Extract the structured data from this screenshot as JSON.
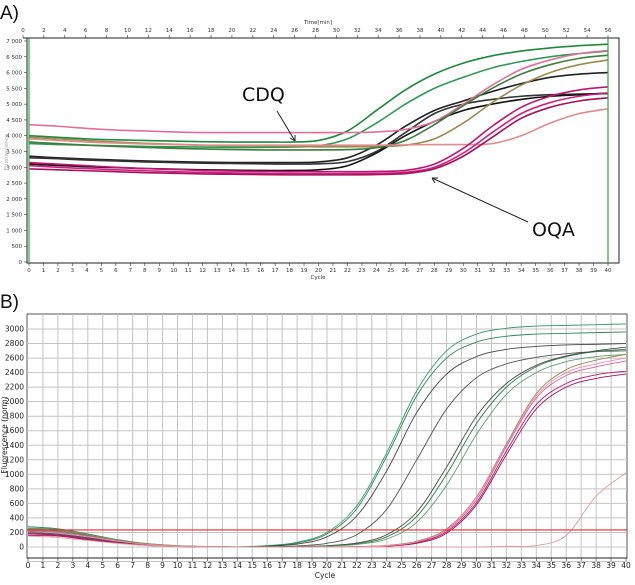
{
  "chart_data": [
    {
      "panel_label": "A)",
      "type": "line",
      "xlabel": "Cycle",
      "x2label": "Time[min]",
      "ylabel": "Fluorescence",
      "xlim": [
        0,
        40
      ],
      "x2lim": [
        0,
        56
      ],
      "ylim": [
        0,
        7000
      ],
      "xticks": [
        0,
        1,
        2,
        3,
        4,
        5,
        6,
        7,
        8,
        9,
        10,
        11,
        12,
        13,
        14,
        15,
        16,
        17,
        18,
        19,
        20,
        21,
        22,
        23,
        24,
        25,
        26,
        27,
        28,
        29,
        30,
        31,
        32,
        33,
        34,
        35,
        36,
        37,
        38,
        39,
        40
      ],
      "x2ticks": [
        0,
        2,
        4,
        6,
        8,
        10,
        12,
        14,
        16,
        18,
        20,
        22,
        24,
        26,
        28,
        30,
        32,
        34,
        36,
        38,
        40,
        42,
        44,
        46,
        48,
        50,
        52,
        54,
        56
      ],
      "yticks": [
        0,
        500,
        1000,
        1500,
        2000,
        2500,
        3000,
        3500,
        4000,
        4500,
        5000,
        5500,
        6000,
        6500,
        7000
      ],
      "ytick_labels": [
        "0",
        "500",
        "1 000",
        "1 500",
        "2 000",
        "2 500",
        "3 000",
        "3 500",
        "4 000",
        "4 500",
        "5 000",
        "5 500",
        "6 000",
        "6 500",
        "7 000"
      ],
      "grid": false,
      "marker_lines_color": "#2eaa4a",
      "annotations": [
        {
          "text": "CDQ",
          "points_to_cycle": 19,
          "points_to_value": 3850
        },
        {
          "text": "OQA",
          "points_to_cycle": 28,
          "points_to_value": 2850
        }
      ],
      "x": [
        0,
        2,
        4,
        6,
        8,
        10,
        12,
        14,
        16,
        18,
        20,
        22,
        24,
        26,
        28,
        30,
        32,
        34,
        36,
        38,
        40
      ],
      "series": [
        {
          "color": "#1f8a3c",
          "values": [
            4000,
            3950,
            3900,
            3870,
            3850,
            3830,
            3810,
            3800,
            3800,
            3800,
            3850,
            4150,
            4800,
            5450,
            5950,
            6300,
            6530,
            6680,
            6780,
            6850,
            6900
          ]
        },
        {
          "color": "#2f9a55",
          "values": [
            3750,
            3720,
            3700,
            3680,
            3660,
            3650,
            3640,
            3630,
            3630,
            3640,
            3680,
            3900,
            4400,
            5000,
            5500,
            5850,
            6150,
            6350,
            6500,
            6600,
            6680
          ]
        },
        {
          "color": "#222222",
          "values": [
            3350,
            3300,
            3260,
            3230,
            3200,
            3180,
            3160,
            3150,
            3150,
            3150,
            3170,
            3300,
            3700,
            4300,
            4800,
            5100,
            5400,
            5650,
            5850,
            5950,
            6000
          ]
        },
        {
          "color": "#333333",
          "values": [
            3300,
            3270,
            3230,
            3200,
            3170,
            3150,
            3130,
            3120,
            3110,
            3100,
            3110,
            3180,
            3500,
            4100,
            4700,
            5000,
            5150,
            5250,
            5300,
            5320,
            5330
          ]
        },
        {
          "color": "#111111",
          "values": [
            3100,
            3060,
            3020,
            2990,
            2960,
            2940,
            2920,
            2910,
            2900,
            2900,
            2920,
            3050,
            3450,
            4000,
            4450,
            4800,
            5000,
            5150,
            5250,
            5300,
            5350
          ]
        },
        {
          "color": "#e0709a",
          "values": [
            4350,
            4300,
            4230,
            4180,
            4150,
            4120,
            4100,
            4100,
            4100,
            4100,
            4100,
            4100,
            4120,
            4200,
            4450,
            5000,
            5600,
            6100,
            6400,
            6600,
            6700
          ]
        },
        {
          "color": "#9a8a50",
          "values": [
            3950,
            3900,
            3850,
            3800,
            3760,
            3730,
            3700,
            3680,
            3670,
            3660,
            3650,
            3650,
            3660,
            3700,
            3900,
            4400,
            5050,
            5600,
            6000,
            6250,
            6400
          ]
        },
        {
          "color": "#3d7d3d",
          "values": [
            3800,
            3750,
            3700,
            3660,
            3630,
            3600,
            3580,
            3560,
            3550,
            3550,
            3550,
            3560,
            3620,
            3850,
            4350,
            4950,
            5500,
            5950,
            6250,
            6450,
            6550
          ]
        },
        {
          "color": "#e08a8a",
          "values": [
            3900,
            3850,
            3800,
            3770,
            3740,
            3720,
            3700,
            3700,
            3700,
            3700,
            3700,
            3700,
            3700,
            3710,
            3720,
            3720,
            3750,
            4000,
            4400,
            4700,
            4850
          ]
        },
        {
          "color": "#c0166f",
          "values": [
            3150,
            3100,
            3050,
            3000,
            2960,
            2930,
            2900,
            2880,
            2870,
            2860,
            2860,
            2860,
            2870,
            2900,
            3100,
            3600,
            4300,
            4900,
            5250,
            5450,
            5550
          ]
        },
        {
          "color": "#d0208a",
          "values": [
            3050,
            3000,
            2960,
            2920,
            2890,
            2860,
            2840,
            2820,
            2810,
            2800,
            2800,
            2800,
            2810,
            2840,
            3000,
            3450,
            4100,
            4700,
            5050,
            5250,
            5350
          ]
        },
        {
          "color": "#a8105a",
          "values": [
            2950,
            2920,
            2890,
            2860,
            2830,
            2810,
            2790,
            2780,
            2770,
            2760,
            2760,
            2760,
            2770,
            2800,
            2950,
            3350,
            3950,
            4550,
            4900,
            5100,
            5200
          ]
        }
      ]
    },
    {
      "panel_label": "B)",
      "type": "line",
      "xlabel": "Cycle",
      "ylabel": "Fluorescence (norm)",
      "xlim": [
        0,
        40
      ],
      "ylim": [
        -200,
        3150
      ],
      "xticks": [
        0,
        1,
        2,
        3,
        4,
        5,
        6,
        7,
        8,
        9,
        10,
        11,
        12,
        13,
        14,
        15,
        16,
        17,
        18,
        19,
        20,
        21,
        22,
        23,
        24,
        25,
        26,
        27,
        28,
        29,
        30,
        31,
        32,
        33,
        34,
        35,
        36,
        37,
        38,
        39,
        40
      ],
      "yticks": [
        0,
        200,
        400,
        600,
        800,
        1000,
        1200,
        1400,
        1600,
        1800,
        2000,
        2200,
        2400,
        2600,
        2800,
        3000
      ],
      "grid": true,
      "threshold": 235,
      "threshold_color": "#e8282a",
      "x": [
        0,
        2,
        4,
        6,
        8,
        10,
        12,
        14,
        16,
        18,
        20,
        22,
        24,
        26,
        28,
        30,
        32,
        34,
        36,
        38,
        40
      ],
      "series": [
        {
          "color": "#3a9a6a",
          "values": [
            260,
            240,
            170,
            100,
            45,
            18,
            8,
            2,
            20,
            65,
            200,
            570,
            1300,
            2150,
            2700,
            2930,
            3010,
            3040,
            3050,
            3060,
            3070
          ]
        },
        {
          "color": "#2f8a55",
          "values": [
            280,
            250,
            180,
            100,
            45,
            15,
            5,
            0,
            15,
            55,
            180,
            530,
            1250,
            2080,
            2600,
            2820,
            2900,
            2930,
            2940,
            2950,
            2960
          ]
        },
        {
          "color": "#444444",
          "values": [
            220,
            200,
            150,
            90,
            40,
            15,
            5,
            0,
            10,
            40,
            140,
            430,
            1050,
            1850,
            2380,
            2620,
            2720,
            2760,
            2780,
            2790,
            2800
          ]
        },
        {
          "color": "#555555",
          "values": [
            200,
            180,
            130,
            80,
            35,
            12,
            3,
            0,
            3,
            15,
            50,
            170,
            520,
            1200,
            1900,
            2330,
            2520,
            2610,
            2660,
            2690,
            2700
          ]
        },
        {
          "color": "#2e7d4a",
          "values": [
            240,
            220,
            160,
            90,
            40,
            15,
            5,
            0,
            0,
            5,
            15,
            45,
            140,
            420,
            1000,
            1700,
            2200,
            2480,
            2620,
            2690,
            2720
          ]
        },
        {
          "color": "#4a4a4a",
          "values": [
            190,
            170,
            120,
            70,
            30,
            10,
            2,
            0,
            0,
            5,
            18,
            55,
            170,
            480,
            1100,
            1800,
            2250,
            2500,
            2630,
            2700,
            2750
          ]
        },
        {
          "color": "#5aa070",
          "values": [
            230,
            200,
            150,
            85,
            38,
            14,
            4,
            0,
            0,
            3,
            10,
            35,
            110,
            340,
            850,
            1550,
            2100,
            2400,
            2550,
            2620,
            2650
          ]
        },
        {
          "color": "#e0609a",
          "values": [
            230,
            210,
            150,
            85,
            40,
            15,
            5,
            0,
            0,
            0,
            0,
            5,
            20,
            70,
            230,
            650,
            1380,
            2050,
            2360,
            2480,
            2560
          ]
        },
        {
          "color": "#c0166f",
          "values": [
            180,
            160,
            110,
            60,
            25,
            8,
            2,
            0,
            0,
            0,
            0,
            3,
            15,
            60,
            210,
            610,
            1320,
            1960,
            2250,
            2370,
            2420
          ]
        },
        {
          "color": "#9a8a50",
          "values": [
            250,
            230,
            170,
            95,
            45,
            18,
            6,
            0,
            0,
            0,
            0,
            5,
            22,
            80,
            250,
            690,
            1420,
            2110,
            2440,
            2570,
            2650
          ]
        },
        {
          "color": "#a8105a",
          "values": [
            160,
            150,
            100,
            55,
            22,
            6,
            0,
            0,
            0,
            0,
            0,
            2,
            12,
            50,
            190,
            580,
            1270,
            1900,
            2200,
            2320,
            2380
          ]
        },
        {
          "color": "#e890b0",
          "values": [
            210,
            190,
            140,
            80,
            35,
            12,
            4,
            0,
            0,
            0,
            0,
            4,
            18,
            70,
            240,
            680,
            1400,
            2080,
            2400,
            2520,
            2600
          ]
        },
        {
          "color": "#e09a9a",
          "values": [
            150,
            130,
            90,
            50,
            20,
            6,
            0,
            0,
            0,
            0,
            0,
            0,
            0,
            0,
            0,
            0,
            10,
            20,
            160,
            700,
            1020
          ]
        }
      ]
    }
  ]
}
